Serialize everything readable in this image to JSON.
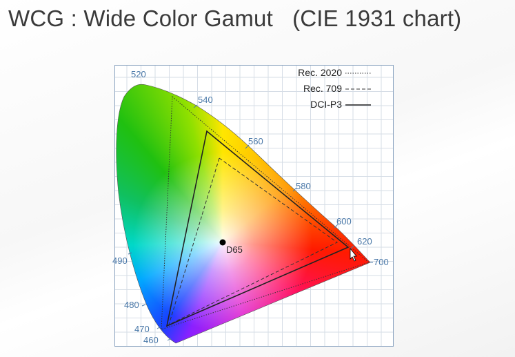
{
  "title": "WCG : Wide Color Gamut   (CIE 1931 chart)",
  "wavelength_labels": [
    "520",
    "540",
    "560",
    "580",
    "600",
    "620",
    "700",
    "490",
    "480",
    "470",
    "460"
  ],
  "legend": [
    {
      "label": "Rec. 2020",
      "style": "dotted"
    },
    {
      "label": "Rec. 709",
      "style": "dashed"
    },
    {
      "label": "DCI-P3",
      "style": "solid"
    }
  ],
  "white_point": "D65",
  "colors": {
    "title": "#3a3a3a",
    "wavelength_label": "#4a78a8",
    "grid": "#d6dde6"
  }
}
